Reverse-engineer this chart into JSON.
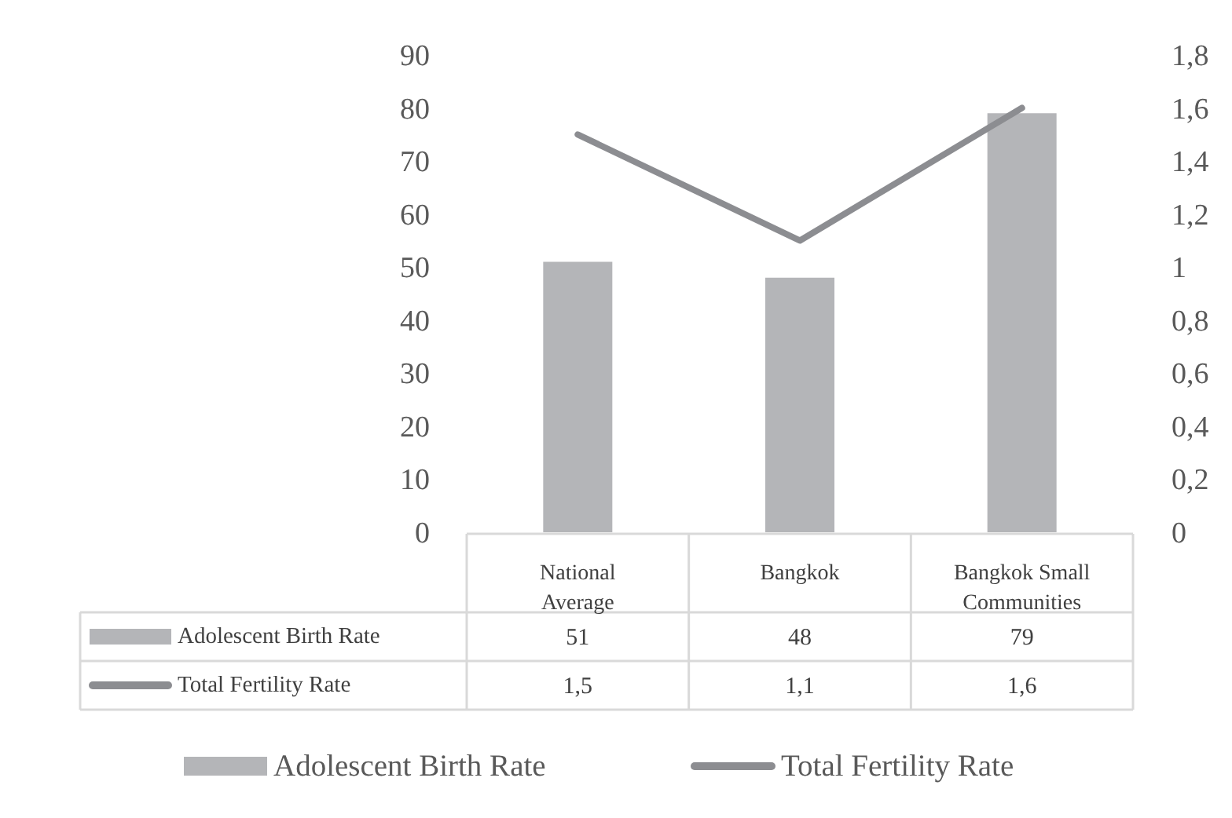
{
  "chart_data": {
    "type": "bar",
    "categories": [
      "National Average",
      "Bangkok",
      "Bangkok Small Communities"
    ],
    "series": [
      {
        "name": "Adolescent Birth Rate",
        "type": "bar",
        "color": "#b4b5b8",
        "values": [
          51,
          48,
          79
        ],
        "value_labels": [
          "51",
          "48",
          "79"
        ]
      },
      {
        "name": "Total Fertility Rate",
        "type": "line",
        "axis": "y2",
        "color": "#8c8d91",
        "values": [
          1.5,
          1.1,
          1.6
        ],
        "value_labels": [
          "1,5",
          "1,1",
          "1,6"
        ]
      }
    ],
    "ylim": [
      0,
      90
    ],
    "yticks": [
      0,
      10,
      20,
      30,
      40,
      50,
      60,
      70,
      80,
      90
    ],
    "y2lim": [
      0,
      1.8
    ],
    "y2ticks": [
      0,
      {
        "value": 0.2,
        "label": "0,2"
      },
      {
        "value": 0.4,
        "label": "0,4"
      },
      {
        "value": 0.6,
        "label": "0,6"
      },
      {
        "value": 0.8,
        "label": "0,8"
      },
      1,
      {
        "value": 1.2,
        "label": "1,2"
      },
      {
        "value": 1.4,
        "label": "1,4"
      },
      {
        "value": 1.6,
        "label": "1,6"
      },
      {
        "value": 1.8,
        "label": "1,8"
      }
    ],
    "grid": false,
    "legend": "bottom"
  }
}
